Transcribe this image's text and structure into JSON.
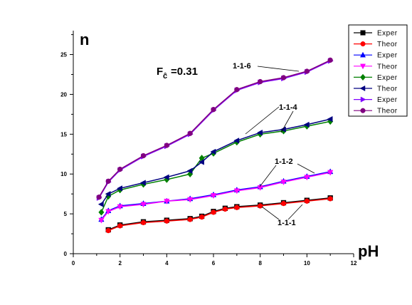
{
  "chart_data": {
    "type": "scatter",
    "xlabel": "pH",
    "ylabel": "n",
    "xlim": [
      0,
      12
    ],
    "ylim": [
      0,
      28
    ],
    "x_ticks": [
      "0",
      "2",
      "4",
      "6",
      "8",
      "10",
      "12"
    ],
    "y_ticks": [
      "0",
      "5",
      "10",
      "15",
      "20",
      "25"
    ],
    "grid": false,
    "legend_position": "top-right",
    "annotations": {
      "fm_main": "F",
      "fm_sub": "ĉ",
      "fm_value": "=0.31",
      "curve_labels": [
        "1-1-6",
        "1-1-4",
        "1-1-2",
        "1-1-1"
      ]
    },
    "series": [
      {
        "name": "Exper",
        "marker": "square",
        "color": "#000000",
        "x": [
          1.5,
          2,
          3,
          4,
          5,
          5.5,
          6,
          6.5,
          7,
          8,
          9,
          10,
          11
        ],
        "y": [
          3.0,
          3.6,
          4.0,
          4.2,
          4.4,
          4.7,
          5.3,
          5.7,
          5.9,
          6.1,
          6.4,
          6.7,
          7.0
        ]
      },
      {
        "name": "Theor",
        "marker": "circle",
        "color": "#ff0000",
        "x": [
          1.5,
          2,
          3,
          4,
          5,
          5.5,
          6,
          6.5,
          7,
          8,
          9,
          10,
          11
        ],
        "y": [
          2.9,
          3.5,
          3.9,
          4.1,
          4.3,
          4.6,
          5.2,
          5.6,
          5.8,
          6.0,
          6.3,
          6.6,
          6.9
        ]
      },
      {
        "name": "Exper",
        "marker": "triangle-up",
        "color": "#0000ff",
        "x": [
          1.2,
          1.5,
          2,
          3,
          4,
          5,
          6,
          7,
          8,
          9,
          10,
          11
        ],
        "y": [
          4.3,
          5.4,
          6.0,
          6.3,
          6.6,
          6.9,
          7.4,
          8.0,
          8.4,
          9.1,
          9.7,
          10.3
        ]
      },
      {
        "name": "Theor",
        "marker": "triangle-down",
        "color": "#ff00ff",
        "x": [
          1.2,
          1.5,
          2,
          3,
          4,
          5,
          6,
          7,
          8,
          9,
          10,
          11
        ],
        "y": [
          4.2,
          5.3,
          5.9,
          6.2,
          6.6,
          6.8,
          7.3,
          7.9,
          8.3,
          9.0,
          9.6,
          10.2
        ]
      },
      {
        "name": "Exper",
        "marker": "diamond",
        "color": "#008000",
        "x": [
          1.2,
          1.5,
          2,
          3,
          4,
          5,
          5.5,
          6,
          7,
          8,
          9,
          10,
          11
        ],
        "y": [
          5.2,
          7.2,
          8.0,
          8.7,
          9.3,
          10.0,
          12.0,
          12.6,
          14.0,
          15.0,
          15.4,
          16.0,
          16.6
        ]
      },
      {
        "name": "Theor",
        "marker": "triangle-left",
        "color": "#000080",
        "x": [
          1.2,
          1.5,
          2,
          3,
          4,
          5,
          5.5,
          6,
          7,
          8,
          9,
          10,
          11
        ],
        "y": [
          6.2,
          7.5,
          8.2,
          8.9,
          9.6,
          10.4,
          11.5,
          12.8,
          14.2,
          15.2,
          15.6,
          16.2,
          16.9
        ]
      },
      {
        "name": "Exper",
        "marker": "triangle-right",
        "color": "#8000ff",
        "x": [
          1.1,
          1.5,
          2,
          3,
          4,
          5,
          6,
          7,
          8,
          9,
          10,
          11
        ],
        "y": [
          7.0,
          9.0,
          10.5,
          12.2,
          13.5,
          15.0,
          18.0,
          20.5,
          21.5,
          22.0,
          22.8,
          24.2
        ]
      },
      {
        "name": "Theor",
        "marker": "circle",
        "color": "#800080",
        "x": [
          1.1,
          1.5,
          2,
          3,
          4,
          5,
          6,
          7,
          8,
          9,
          10,
          11
        ],
        "y": [
          7.1,
          9.1,
          10.6,
          12.3,
          13.6,
          15.1,
          18.1,
          20.6,
          21.6,
          22.1,
          22.9,
          24.3
        ]
      }
    ]
  }
}
